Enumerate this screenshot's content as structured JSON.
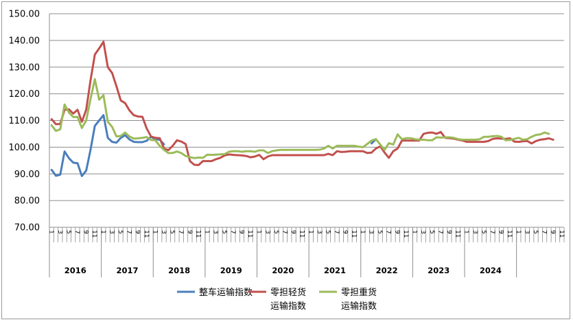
{
  "chart_data": {
    "type": "line",
    "title": "",
    "xlabel": "",
    "ylabel": "",
    "ylim": [
      70,
      150
    ],
    "yticks": [
      "70.00",
      "80.00",
      "90.00",
      "100.00",
      "110.00",
      "120.00",
      "130.00",
      "140.00",
      "150.00"
    ],
    "years": [
      "2016",
      "2017",
      "2018",
      "2019",
      "2020",
      "2021",
      "2022",
      "2023",
      "2024"
    ],
    "month_labels": [
      "1",
      "3",
      "5",
      "7",
      "9",
      "11"
    ],
    "grid": "horizontal",
    "legend_position": "bottom",
    "series": [
      {
        "name": "整车运输指数",
        "color": "#4a7ebb",
        "start_month": 1,
        "values": [
          91.5,
          89.3,
          89.7,
          98.4,
          95.9,
          94.2,
          94.0,
          89.2,
          91.2,
          99.0,
          108.0,
          110.0,
          112.0,
          103.5,
          102.0,
          101.7,
          103.5,
          104.5,
          102.9,
          102.0,
          101.9,
          101.9,
          102.4,
          103.9,
          103.0,
          102.8,
          101.1,
          null,
          null,
          null,
          null,
          null,
          null,
          null,
          null,
          null,
          null,
          null,
          null,
          null,
          null,
          null,
          null,
          null,
          null,
          null,
          null,
          null,
          null,
          null,
          null,
          null,
          null,
          null,
          null,
          null,
          null,
          null,
          null,
          null,
          null,
          null,
          null,
          null,
          null,
          null,
          null,
          null,
          null,
          null,
          null,
          null,
          null,
          null,
          101.4,
          103.0,
          null,
          null,
          null,
          null,
          null,
          null,
          null,
          null,
          null,
          null,
          null,
          null,
          null,
          null,
          null,
          null,
          null,
          null,
          null,
          null,
          null,
          null,
          null,
          null,
          null,
          null,
          null,
          null,
          null,
          null,
          null,
          null,
          null,
          null,
          null,
          null,
          null,
          null,
          null,
          null,
          null,
          null,
          null
        ]
      },
      {
        "name": "零担轻货运输指数",
        "color": "#c0504d",
        "start_month": 1,
        "values": [
          110.5,
          108.6,
          108.7,
          114.0,
          114.2,
          112.6,
          114.0,
          109.5,
          114.0,
          125.0,
          134.7,
          137.0,
          139.5,
          130.0,
          127.8,
          122.8,
          117.5,
          116.5,
          113.8,
          112.0,
          111.5,
          111.4,
          107.0,
          104.0,
          103.5,
          103.4,
          99.5,
          98.9,
          100.5,
          102.6,
          102.1,
          101.2,
          94.8,
          93.4,
          93.3,
          94.8,
          94.8,
          94.8,
          95.5,
          96.0,
          96.9,
          97.3,
          97.1,
          97.0,
          96.9,
          96.7,
          96.2,
          96.5,
          97.1,
          95.5,
          96.5,
          97.0,
          97.0,
          97.0,
          97.0,
          97.0,
          97.0,
          97.0,
          97.0,
          97.0,
          97.0,
          97.0,
          97.0,
          97.0,
          97.5,
          97.0,
          98.5,
          98.2,
          98.3,
          98.5,
          98.5,
          98.5,
          98.5,
          97.8,
          98.0,
          99.5,
          100.3,
          98.0,
          96.0,
          98.5,
          99.5,
          102.5,
          102.5,
          102.5,
          102.5,
          102.5,
          105.0,
          105.4,
          105.5,
          105.0,
          105.7,
          103.5,
          103.4,
          103.2,
          102.8,
          102.5,
          102.0,
          102.0,
          102.0,
          102.0,
          102.0,
          102.3,
          103.1,
          103.3,
          103.2,
          103.1,
          103.3,
          102.1,
          102.0,
          102.2,
          102.3,
          101.4,
          102.3,
          102.8,
          103.0,
          103.3,
          102.8
        ]
      },
      {
        "name": "零担重货运输指数",
        "color": "#9bbb59",
        "start_month": 1,
        "values": [
          108.2,
          106.1,
          106.7,
          116.0,
          113.0,
          111.3,
          111.3,
          107.2,
          110.0,
          118.0,
          125.5,
          117.8,
          119.5,
          109.5,
          107.6,
          104.0,
          104.2,
          105.5,
          104.0,
          103.2,
          103.3,
          103.5,
          103.8,
          102.7,
          102.6,
          100.5,
          99.0,
          97.8,
          97.8,
          98.4,
          97.8,
          96.7,
          96.3,
          95.9,
          96.1,
          96.0,
          97.2,
          97.1,
          97.2,
          97.3,
          97.4,
          98.3,
          98.5,
          98.5,
          98.3,
          98.5,
          98.5,
          98.3,
          98.8,
          98.8,
          97.8,
          98.5,
          98.8,
          99.0,
          99.0,
          99.0,
          99.0,
          99.0,
          99.0,
          99.0,
          99.0,
          99.0,
          99.1,
          99.5,
          100.5,
          99.5,
          100.5,
          100.5,
          100.5,
          100.5,
          100.5,
          100.2,
          100.0,
          101.2,
          102.5,
          103.0,
          101.0,
          99.0,
          101.5,
          101.0,
          104.8,
          103.0,
          103.4,
          103.4,
          103.0,
          102.8,
          102.8,
          102.6,
          102.6,
          103.7,
          103.6,
          103.7,
          103.7,
          103.5,
          103.0,
          102.8,
          102.8,
          102.8,
          102.8,
          103.0,
          103.9,
          103.9,
          104.1,
          104.2,
          103.9,
          102.6,
          102.7,
          103.1,
          103.5,
          102.8,
          103.0,
          103.9,
          104.6,
          104.8,
          105.5,
          105.0
        ]
      }
    ]
  }
}
